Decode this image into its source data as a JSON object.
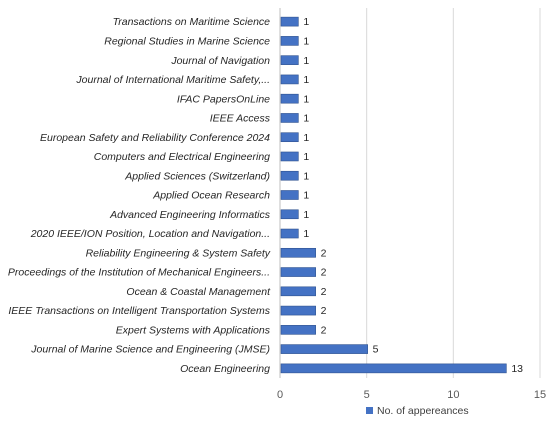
{
  "chart_data": {
    "type": "bar",
    "orientation": "horizontal",
    "categories": [
      "Transactions on Maritime Science",
      "Regional Studies in Marine Science",
      "Journal of Navigation",
      "Journal of International Maritime Safety,...",
      "IFAC PapersOnLine",
      "IEEE Access",
      "European Safety and Reliability Conference 2024",
      "Computers and Electrical Engineering",
      "Applied Sciences (Switzerland)",
      "Applied Ocean Research",
      "Advanced Engineering Informatics",
      "2020 IEEE/ION Position, Location and Navigation...",
      "Reliability Engineering & System Safety",
      "Proceedings of the Institution of Mechanical Engineers...",
      "Ocean & Coastal Management",
      "IEEE Transactions on Intelligent Transportation Systems",
      "Expert Systems with Applications",
      "Journal of Marine Science and Engineering (JMSE)",
      "Ocean Engineering"
    ],
    "series": [
      {
        "name": "No. of appereances",
        "color": "#4472c4",
        "values": [
          1,
          1,
          1,
          1,
          1,
          1,
          1,
          1,
          1,
          1,
          1,
          1,
          2,
          2,
          2,
          2,
          2,
          5,
          13
        ]
      }
    ],
    "x_ticks": [
      "0",
      "5",
      "10",
      "15"
    ],
    "xlim": [
      0,
      15
    ],
    "grid": "vertical",
    "legend_position": "bottom-right",
    "title": "",
    "xlabel": "",
    "ylabel": ""
  }
}
